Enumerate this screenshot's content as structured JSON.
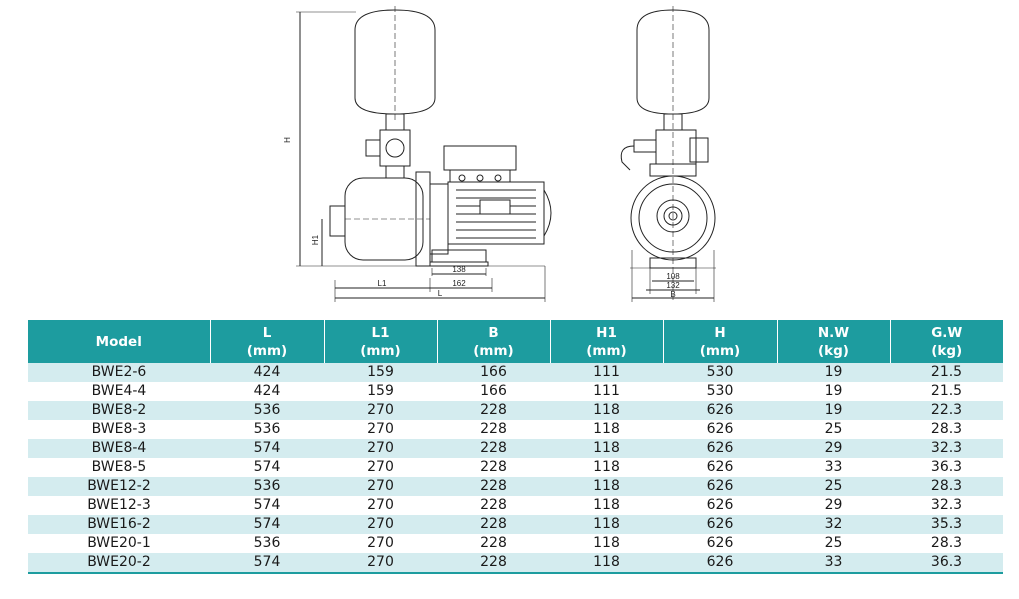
{
  "drawing": {
    "side_view": {
      "dim_H": "H",
      "dim_H1": "H1",
      "dim_L1": "L1",
      "dim_L": "L",
      "dim_138": "138",
      "dim_162": "162"
    },
    "front_view": {
      "dim_108": "108",
      "dim_132": "132",
      "dim_B": "B"
    }
  },
  "table": {
    "headers": [
      {
        "line1": "Model",
        "line2": ""
      },
      {
        "line1": "L",
        "line2": "(mm)"
      },
      {
        "line1": "L1",
        "line2": "(mm)"
      },
      {
        "line1": "B",
        "line2": "(mm)"
      },
      {
        "line1": "H1",
        "line2": "(mm)"
      },
      {
        "line1": "H",
        "line2": "(mm)"
      },
      {
        "line1": "N.W",
        "line2": "(kg)"
      },
      {
        "line1": "G.W",
        "line2": "(kg)"
      }
    ],
    "rows": [
      [
        "BWE2-6",
        "424",
        "159",
        "166",
        "111",
        "530",
        "19",
        "21.5"
      ],
      [
        "BWE4-4",
        "424",
        "159",
        "166",
        "111",
        "530",
        "19",
        "21.5"
      ],
      [
        "BWE8-2",
        "536",
        "270",
        "228",
        "118",
        "626",
        "19",
        "22.3"
      ],
      [
        "BWE8-3",
        "536",
        "270",
        "228",
        "118",
        "626",
        "25",
        "28.3"
      ],
      [
        "BWE8-4",
        "574",
        "270",
        "228",
        "118",
        "626",
        "29",
        "32.3"
      ],
      [
        "BWE8-5",
        "574",
        "270",
        "228",
        "118",
        "626",
        "33",
        "36.3"
      ],
      [
        "BWE12-2",
        "536",
        "270",
        "228",
        "118",
        "626",
        "25",
        "28.3"
      ],
      [
        "BWE12-3",
        "574",
        "270",
        "228",
        "118",
        "626",
        "29",
        "32.3"
      ],
      [
        "BWE16-2",
        "574",
        "270",
        "228",
        "118",
        "626",
        "32",
        "35.3"
      ],
      [
        "BWE20-1",
        "536",
        "270",
        "228",
        "118",
        "626",
        "25",
        "28.3"
      ],
      [
        "BWE20-2",
        "574",
        "270",
        "228",
        "118",
        "626",
        "33",
        "36.3"
      ]
    ]
  },
  "colors": {
    "header_bg": "#1d9c9f",
    "header_text": "#ffffff",
    "row_alt_bg": "#d4ecef"
  }
}
